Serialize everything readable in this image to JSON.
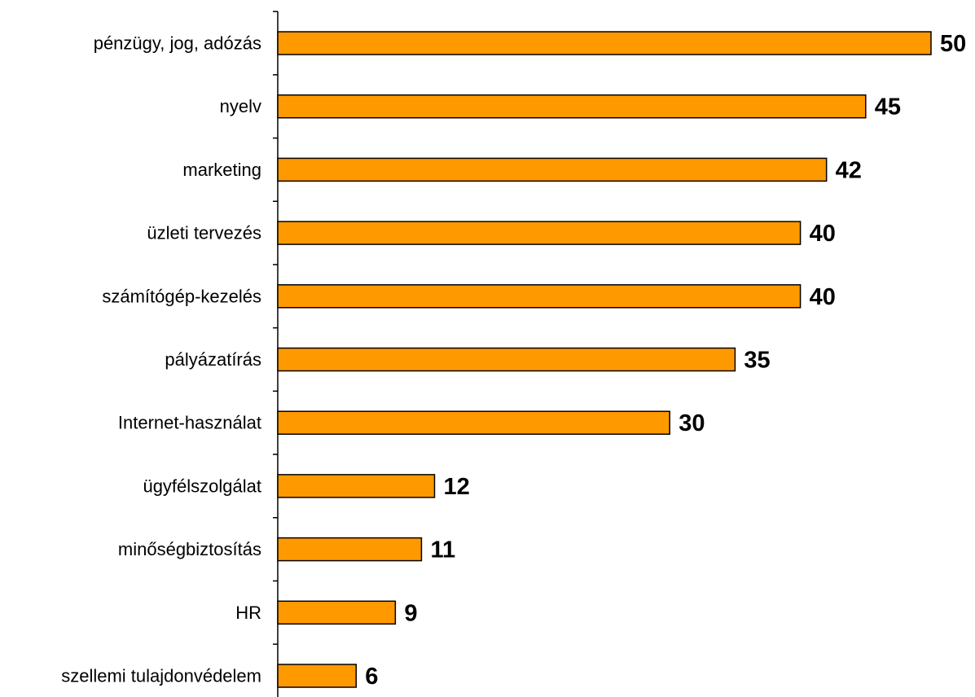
{
  "chart_data": {
    "type": "bar",
    "orientation": "horizontal",
    "categories": [
      "pénzügy, jog, adózás",
      "nyelv",
      "marketing",
      "üzleti tervezés",
      "számítógép-kezelés",
      "pályázatírás",
      "Internet-használat",
      "ügyfélszolgálat",
      "minőségbiztosítás",
      "HR",
      "szellemi tulajdonvédelem"
    ],
    "values": [
      50,
      45,
      42,
      40,
      40,
      35,
      30,
      12,
      11,
      9,
      6
    ],
    "title": "",
    "xlabel": "",
    "ylabel": "",
    "xlim": [
      0,
      50
    ],
    "grid": false,
    "legend": "none",
    "data_labels": true,
    "colors": {
      "bar_fill": "#FF9900",
      "bar_stroke": "#000000",
      "axis": "#000000",
      "text": "#000000"
    }
  }
}
